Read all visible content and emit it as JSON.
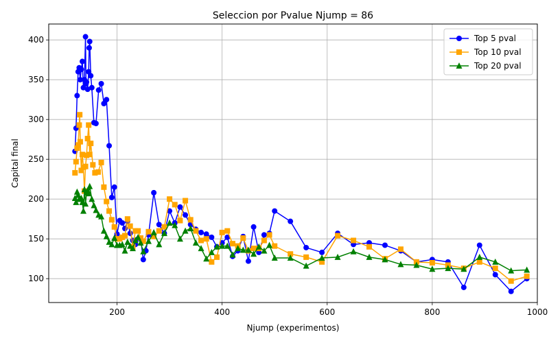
{
  "chart_data": {
    "type": "line",
    "title": "Seleccion por Pvalue Njump = 86",
    "xlabel": "Njump (experimentos)",
    "ylabel": "Capital final",
    "xlim": [
      70,
      1000
    ],
    "ylim": [
      70,
      420
    ],
    "xticks": [
      200,
      400,
      600,
      800,
      1000
    ],
    "yticks": [
      100,
      150,
      200,
      250,
      300,
      350,
      400
    ],
    "grid": true,
    "legend_position": "top-right",
    "series": [
      {
        "name": "Top 5 pval",
        "color": "#0000ff",
        "marker": "circle",
        "points": [
          [
            120,
            260
          ],
          [
            122,
            289
          ],
          [
            124,
            330
          ],
          [
            126,
            360
          ],
          [
            128,
            365
          ],
          [
            130,
            350
          ],
          [
            132,
            363
          ],
          [
            134,
            373
          ],
          [
            136,
            340
          ],
          [
            138,
            350
          ],
          [
            140,
            404
          ],
          [
            141,
            345
          ],
          [
            142,
            347
          ],
          [
            144,
            338
          ],
          [
            146,
            360
          ],
          [
            147,
            390
          ],
          [
            148,
            398
          ],
          [
            150,
            355
          ],
          [
            152,
            340
          ],
          [
            156,
            296
          ],
          [
            160,
            295
          ],
          [
            165,
            337
          ],
          [
            170,
            345
          ],
          [
            175,
            320
          ],
          [
            180,
            325
          ],
          [
            185,
            267
          ],
          [
            190,
            202
          ],
          [
            195,
            215
          ],
          [
            200,
            156
          ],
          [
            205,
            173
          ],
          [
            210,
            170
          ],
          [
            215,
            163
          ],
          [
            220,
            172
          ],
          [
            225,
            157
          ],
          [
            230,
            148
          ],
          [
            235,
            143
          ],
          [
            240,
            150
          ],
          [
            245,
            150
          ],
          [
            250,
            124
          ],
          [
            255,
            135
          ],
          [
            260,
            155
          ],
          [
            270,
            208
          ],
          [
            280,
            168
          ],
          [
            290,
            157
          ],
          [
            300,
            185
          ],
          [
            310,
            170
          ],
          [
            320,
            190
          ],
          [
            330,
            180
          ],
          [
            340,
            168
          ],
          [
            350,
            162
          ],
          [
            360,
            158
          ],
          [
            370,
            156
          ],
          [
            380,
            152
          ],
          [
            390,
            140
          ],
          [
            400,
            145
          ],
          [
            410,
            152
          ],
          [
            420,
            128
          ],
          [
            430,
            135
          ],
          [
            440,
            153
          ],
          [
            450,
            122
          ],
          [
            460,
            165
          ],
          [
            470,
            133
          ],
          [
            480,
            155
          ],
          [
            490,
            157
          ],
          [
            500,
            185
          ],
          [
            530,
            172
          ],
          [
            560,
            139
          ],
          [
            590,
            133
          ],
          [
            620,
            157
          ],
          [
            650,
            143
          ],
          [
            680,
            145
          ],
          [
            710,
            142
          ],
          [
            740,
            135
          ],
          [
            770,
            121
          ],
          [
            800,
            124
          ],
          [
            830,
            121
          ],
          [
            860,
            89
          ],
          [
            890,
            142
          ],
          [
            920,
            105
          ],
          [
            950,
            84
          ],
          [
            980,
            100
          ]
        ]
      },
      {
        "name": "Top 10 pval",
        "color": "#ffa500",
        "marker": "square",
        "points": [
          [
            120,
            233
          ],
          [
            122,
            247
          ],
          [
            124,
            264
          ],
          [
            126,
            268
          ],
          [
            128,
            293
          ],
          [
            129,
            306
          ],
          [
            130,
            272
          ],
          [
            132,
            236
          ],
          [
            134,
            256
          ],
          [
            136,
            240
          ],
          [
            138,
            210
          ],
          [
            140,
            241
          ],
          [
            142,
            255
          ],
          [
            144,
            276
          ],
          [
            146,
            293
          ],
          [
            148,
            256
          ],
          [
            150,
            270
          ],
          [
            154,
            243
          ],
          [
            158,
            233
          ],
          [
            164,
            234
          ],
          [
            170,
            246
          ],
          [
            175,
            215
          ],
          [
            180,
            197
          ],
          [
            185,
            185
          ],
          [
            190,
            174
          ],
          [
            195,
            165
          ],
          [
            200,
            150
          ],
          [
            205,
            150
          ],
          [
            210,
            152
          ],
          [
            215,
            154
          ],
          [
            220,
            175
          ],
          [
            225,
            166
          ],
          [
            230,
            140
          ],
          [
            235,
            160
          ],
          [
            240,
            160
          ],
          [
            245,
            151
          ],
          [
            250,
            147
          ],
          [
            260,
            159
          ],
          [
            270,
            153
          ],
          [
            280,
            160
          ],
          [
            290,
            165
          ],
          [
            300,
            200
          ],
          [
            310,
            193
          ],
          [
            320,
            173
          ],
          [
            330,
            198
          ],
          [
            340,
            174
          ],
          [
            350,
            160
          ],
          [
            360,
            148
          ],
          [
            370,
            150
          ],
          [
            380,
            121
          ],
          [
            390,
            127
          ],
          [
            400,
            158
          ],
          [
            410,
            160
          ],
          [
            420,
            144
          ],
          [
            430,
            141
          ],
          [
            440,
            151
          ],
          [
            450,
            135
          ],
          [
            460,
            138
          ],
          [
            470,
            138
          ],
          [
            480,
            148
          ],
          [
            490,
            155
          ],
          [
            500,
            141
          ],
          [
            530,
            131
          ],
          [
            560,
            127
          ],
          [
            590,
            121
          ],
          [
            620,
            154
          ],
          [
            650,
            148
          ],
          [
            680,
            140
          ],
          [
            710,
            125
          ],
          [
            740,
            137
          ],
          [
            770,
            121
          ],
          [
            800,
            120
          ],
          [
            830,
            117
          ],
          [
            860,
            113
          ],
          [
            890,
            121
          ],
          [
            920,
            113
          ],
          [
            950,
            97
          ],
          [
            980,
            103
          ]
        ]
      },
      {
        "name": "Top 20 pval",
        "color": "#008000",
        "marker": "triangle",
        "points": [
          [
            120,
            201
          ],
          [
            122,
            196
          ],
          [
            124,
            209
          ],
          [
            126,
            205
          ],
          [
            128,
            200
          ],
          [
            130,
            200
          ],
          [
            132,
            201
          ],
          [
            134,
            196
          ],
          [
            136,
            185
          ],
          [
            138,
            212
          ],
          [
            140,
            194
          ],
          [
            142,
            208
          ],
          [
            144,
            211
          ],
          [
            146,
            207
          ],
          [
            148,
            216
          ],
          [
            152,
            200
          ],
          [
            156,
            192
          ],
          [
            160,
            186
          ],
          [
            165,
            180
          ],
          [
            170,
            178
          ],
          [
            175,
            160
          ],
          [
            180,
            153
          ],
          [
            185,
            146
          ],
          [
            190,
            143
          ],
          [
            195,
            151
          ],
          [
            200,
            142
          ],
          [
            205,
            142
          ],
          [
            210,
            143
          ],
          [
            215,
            135
          ],
          [
            220,
            146
          ],
          [
            225,
            141
          ],
          [
            230,
            138
          ],
          [
            235,
            148
          ],
          [
            240,
            152
          ],
          [
            245,
            145
          ],
          [
            250,
            134
          ],
          [
            260,
            147
          ],
          [
            270,
            158
          ],
          [
            280,
            143
          ],
          [
            290,
            157
          ],
          [
            300,
            170
          ],
          [
            310,
            167
          ],
          [
            320,
            150
          ],
          [
            330,
            160
          ],
          [
            340,
            163
          ],
          [
            350,
            145
          ],
          [
            360,
            138
          ],
          [
            370,
            125
          ],
          [
            380,
            133
          ],
          [
            390,
            140
          ],
          [
            400,
            141
          ],
          [
            410,
            141
          ],
          [
            420,
            130
          ],
          [
            430,
            138
          ],
          [
            440,
            136
          ],
          [
            450,
            136
          ],
          [
            460,
            131
          ],
          [
            470,
            140
          ],
          [
            480,
            135
          ],
          [
            490,
            142
          ],
          [
            500,
            126
          ],
          [
            530,
            126
          ],
          [
            560,
            116
          ],
          [
            590,
            126
          ],
          [
            620,
            127
          ],
          [
            650,
            134
          ],
          [
            680,
            127
          ],
          [
            710,
            124
          ],
          [
            740,
            118
          ],
          [
            770,
            117
          ],
          [
            800,
            112
          ],
          [
            830,
            113
          ],
          [
            860,
            112
          ],
          [
            890,
            127
          ],
          [
            920,
            121
          ],
          [
            950,
            110
          ],
          [
            980,
            111
          ]
        ]
      }
    ]
  }
}
